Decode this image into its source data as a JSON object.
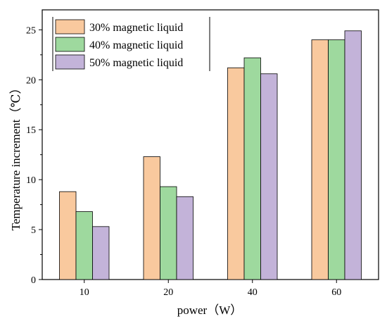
{
  "chart_data": {
    "type": "bar",
    "categories": [
      "10",
      "20",
      "40",
      "60"
    ],
    "series": [
      {
        "name": "30% magnetic liquid",
        "values": [
          8.8,
          12.3,
          21.2,
          24.0
        ]
      },
      {
        "name": "40% magnetic liquid",
        "values": [
          6.8,
          9.3,
          22.2,
          24.0
        ]
      },
      {
        "name": "50% magnetic liquid",
        "values": [
          5.3,
          8.3,
          20.6,
          24.9
        ]
      }
    ],
    "colors": [
      "#F9C99E",
      "#9ED99E",
      "#C3B3D9"
    ],
    "xlabel": "power（W）",
    "ylabel": "Temperature increment（℃）",
    "ylim": [
      0,
      27
    ],
    "yticks": [
      0,
      5,
      10,
      15,
      20,
      25
    ],
    "grid": false,
    "legend_position": "top-left"
  }
}
